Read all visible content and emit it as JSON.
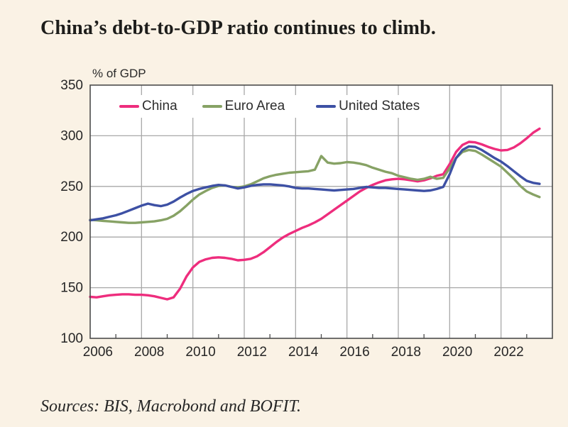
{
  "title": "China’s debt-to-GDP ratio continues to climb.",
  "source_note": "Sources: BIS, Macrobond and BOFIT.",
  "style": {
    "page_bg": "#faf2e5",
    "plot_bg": "#ffffff",
    "grid_color": "#a8a8a8",
    "axis_color": "#4c4c4c",
    "tick_label_color": "#262626"
  },
  "chart_data": {
    "type": "line",
    "title": "China’s debt-to-GDP ratio continues to climb.",
    "unit_label": "% of GDP",
    "xlabel": "",
    "ylabel": "% of GDP",
    "ylim": [
      100,
      350
    ],
    "yticks": [
      100,
      150,
      200,
      250,
      300,
      350
    ],
    "xlim": [
      2006,
      2024
    ],
    "x_gridlines": [
      2008,
      2010,
      2012,
      2014,
      2016,
      2018,
      2020,
      2022
    ],
    "x_minor_ticks": [
      2007,
      2009,
      2011,
      2013,
      2015,
      2017,
      2019,
      2021,
      2023
    ],
    "x_tick_labels": [
      2006,
      2008,
      2010,
      2012,
      2014,
      2016,
      2018,
      2020,
      2022
    ],
    "x_label_offset": 0.3,
    "grid": true,
    "legend_position": "top-inside",
    "x_start": 2006.0,
    "x_step": 0.25,
    "series": [
      {
        "name": "China",
        "color": "#ee2d7d",
        "values": [
          141,
          140.5,
          141.5,
          142.5,
          143,
          143.5,
          143.5,
          143,
          143,
          142.5,
          141.5,
          140,
          138.5,
          140.5,
          149,
          161,
          170,
          175.5,
          178,
          179.5,
          180,
          179.5,
          178.5,
          177,
          177.5,
          178.5,
          181,
          185,
          190,
          195,
          199.5,
          203,
          206,
          209,
          211.5,
          214.5,
          218,
          222.5,
          227,
          231.5,
          236,
          240.5,
          245,
          248.5,
          251.5,
          254,
          256,
          257,
          257.5,
          257,
          256,
          255,
          256,
          258,
          260.5,
          262,
          272,
          284,
          291,
          294,
          293.5,
          291.5,
          289,
          287,
          285.5,
          286,
          288.5,
          292.5,
          297.5,
          303,
          307
        ]
      },
      {
        "name": "Euro Area",
        "color": "#87a265",
        "values": [
          217,
          216.5,
          216,
          215.5,
          215,
          214.5,
          214,
          214,
          214.5,
          215,
          215.5,
          216.5,
          218,
          221,
          225.5,
          231,
          237,
          242,
          245.5,
          248.5,
          250.5,
          251,
          249.5,
          249,
          250,
          252,
          255,
          258,
          260,
          261.5,
          262.5,
          263.5,
          264,
          264.5,
          265,
          266.5,
          280,
          273.5,
          272.5,
          273,
          274,
          273.5,
          272.5,
          271,
          268.5,
          266.5,
          264.5,
          263,
          260.5,
          259,
          257.5,
          256.5,
          257.5,
          259.5,
          257.5,
          258.5,
          268,
          278,
          284,
          286,
          285,
          281.5,
          277.5,
          273.5,
          269.5,
          263.5,
          257.5,
          250.5,
          245,
          242,
          239.5
        ]
      },
      {
        "name": "United States",
        "color": "#3d50a4",
        "values": [
          216.5,
          217.5,
          218.5,
          220,
          221.5,
          223.5,
          226,
          228.5,
          231,
          233,
          231.5,
          230.5,
          232,
          235,
          239,
          242.5,
          245.5,
          247.5,
          249,
          250.5,
          251.5,
          251,
          249.5,
          248,
          249,
          250.5,
          251.5,
          252,
          252,
          251.5,
          251,
          250,
          248.5,
          248,
          248,
          247.5,
          247,
          246.5,
          246,
          246.5,
          247,
          247.5,
          248.5,
          249.5,
          249,
          248.5,
          248.5,
          248,
          247.5,
          247,
          246.5,
          246,
          245.5,
          246,
          247.5,
          249.5,
          262,
          278,
          286,
          289.5,
          289,
          286,
          282,
          278,
          274.5,
          270,
          265,
          260,
          255.5,
          253.5,
          252.5
        ]
      }
    ]
  }
}
